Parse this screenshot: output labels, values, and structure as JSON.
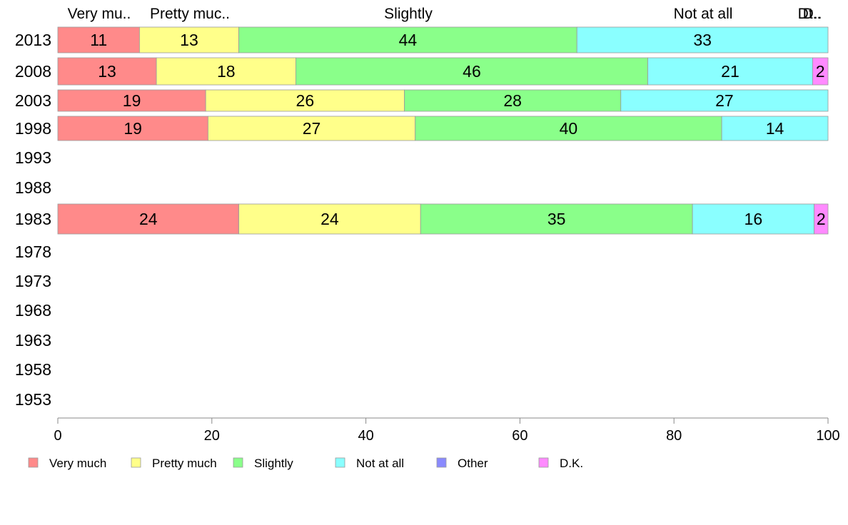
{
  "chart_data": {
    "type": "bar",
    "orientation": "horizontal",
    "stacked": true,
    "categories": [
      "2013",
      "2008",
      "2003",
      "1998",
      "1993",
      "1988",
      "1983",
      "1978",
      "1973",
      "1968",
      "1963",
      "1958",
      "1953"
    ],
    "series": [
      {
        "name": "Very much",
        "color": "#ff8a8a",
        "values": [
          10.6,
          12.8,
          19.2,
          19.5,
          null,
          null,
          23.5,
          null,
          null,
          null,
          null,
          null,
          null
        ],
        "labels": [
          "11",
          "13",
          "19",
          "19",
          "",
          "",
          "24",
          "",
          "",
          "",
          "",
          "",
          ""
        ]
      },
      {
        "name": "Pretty much",
        "color": "#ffff8a",
        "values": [
          12.9,
          18.1,
          25.8,
          26.9,
          null,
          null,
          23.6,
          null,
          null,
          null,
          null,
          null,
          null
        ],
        "labels": [
          "13",
          "18",
          "26",
          "27",
          "",
          "",
          "24",
          "",
          "",
          "",
          "",
          "",
          ""
        ]
      },
      {
        "name": "Slightly",
        "color": "#8aff8a",
        "values": [
          43.9,
          45.7,
          28.1,
          39.8,
          null,
          null,
          35.3,
          null,
          null,
          null,
          null,
          null,
          null
        ],
        "labels": [
          "44",
          "46",
          "28",
          "40",
          "",
          "",
          "35",
          "",
          "",
          "",
          "",
          "",
          ""
        ]
      },
      {
        "name": "Not at all",
        "color": "#8affff",
        "values": [
          32.6,
          21.4,
          26.9,
          13.8,
          null,
          null,
          15.8,
          null,
          null,
          null,
          null,
          null,
          null
        ],
        "labels": [
          "33",
          "21",
          "27",
          "14",
          "",
          "",
          "16",
          "",
          "",
          "",
          "",
          "",
          ""
        ]
      },
      {
        "name": "Other",
        "color": "#8a8aff",
        "values": [
          0,
          0,
          0,
          0,
          null,
          null,
          0,
          null,
          null,
          null,
          null,
          null,
          null
        ],
        "labels": [
          "",
          "",
          "",
          "",
          "",
          "",
          "",
          "",
          "",
          "",
          "",
          "",
          ""
        ]
      },
      {
        "name": "D.K.",
        "color": "#ff8aff",
        "values": [
          0,
          2.0,
          0,
          0,
          null,
          null,
          1.8,
          null,
          null,
          null,
          null,
          null,
          null
        ],
        "labels": [
          "",
          "2",
          "",
          "",
          "",
          "",
          "2",
          "",
          "",
          "",
          "",
          "",
          ""
        ]
      }
    ],
    "top_labels": [
      "Very mu..",
      "Pretty muc..",
      "Slightly",
      "Not at all",
      "Dt..",
      "D.."
    ],
    "xlim": [
      0,
      100
    ],
    "xticks": [
      "0",
      "20",
      "40",
      "60",
      "80",
      "100"
    ],
    "legend": {
      "placement": "bottom",
      "entries": [
        "Very much",
        "Pretty much",
        "Slightly",
        "Not at all",
        "Other",
        "D.K."
      ]
    },
    "grid": false
  }
}
